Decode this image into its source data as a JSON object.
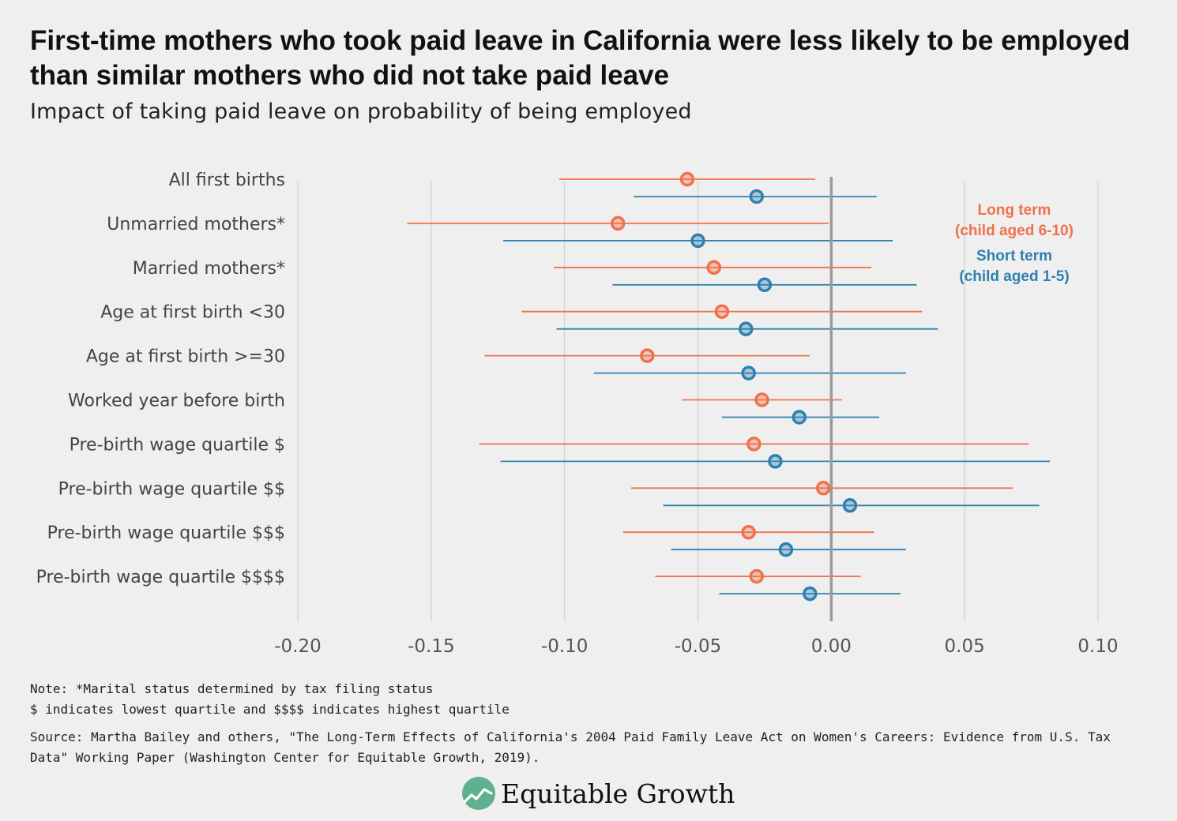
{
  "title": "First-time mothers who took paid leave in California were less likely to be employed than similar mothers who did not take paid leave",
  "subtitle": "Impact of taking paid leave on probability of being employed",
  "notes": [
    "Note: *Marital status determined by tax filing status",
    "$ indicates lowest quartile and $$$$ indicates highest quartile"
  ],
  "source": "Source: Martha Bailey and others, \"The Long-Term Effects of California's 2004 Paid Family Leave Act on Women's Careers: Evidence from U.S. Tax Data\" Working Paper (Washington Center for Equitable Growth, 2019).",
  "brand": {
    "name": "Equitable Growth",
    "logo_icon": "trend-line-circle-icon"
  },
  "colors": {
    "long_term": "#f0714a",
    "short_term": "#2f80b0",
    "grid": "#d6d6d6",
    "zero_line": "#9a9a9a"
  },
  "chart_data": {
    "type": "dot-whisker",
    "xlim": [
      -0.2,
      0.1
    ],
    "x_ticks": [
      -0.2,
      -0.15,
      -0.1,
      -0.05,
      0.0,
      0.05,
      0.1
    ],
    "x_tick_labels": [
      "-0.20",
      "-0.15",
      "-0.10",
      "-0.05",
      "0.00",
      "0.05",
      "0.10"
    ],
    "grid": true,
    "legend_position": "top-right",
    "legend": [
      {
        "key": "long_term",
        "lines": [
          "Long term",
          "(child aged 6-10)"
        ]
      },
      {
        "key": "short_term",
        "lines": [
          "Short term",
          "(child aged 1-5)"
        ]
      }
    ],
    "categories": [
      "All first births",
      "Unmarried mothers*",
      "Married mothers*",
      "Age at first birth <30",
      "Age at first birth >=30",
      "Worked year before birth",
      "Pre-birth wage quartile $",
      "Pre-birth wage quartile $$",
      "Pre-birth wage quartile $$$",
      "Pre-birth wage quartile $$$$"
    ],
    "series": [
      {
        "key": "long_term",
        "estimates": [
          -0.054,
          -0.08,
          -0.044,
          -0.041,
          -0.069,
          -0.026,
          -0.029,
          -0.003,
          -0.031,
          -0.028
        ],
        "low": [
          -0.102,
          -0.159,
          -0.104,
          -0.116,
          -0.13,
          -0.056,
          -0.132,
          -0.075,
          -0.078,
          -0.066
        ],
        "high": [
          -0.006,
          -0.001,
          0.015,
          0.034,
          -0.008,
          0.004,
          0.074,
          0.068,
          0.016,
          0.011
        ]
      },
      {
        "key": "short_term",
        "estimates": [
          -0.028,
          -0.05,
          -0.025,
          -0.032,
          -0.031,
          -0.012,
          -0.021,
          0.007,
          -0.017,
          -0.008
        ],
        "low": [
          -0.074,
          -0.123,
          -0.082,
          -0.103,
          -0.089,
          -0.041,
          -0.124,
          -0.063,
          -0.06,
          -0.042
        ],
        "high": [
          0.017,
          0.023,
          0.032,
          0.04,
          0.028,
          0.018,
          0.082,
          0.078,
          0.028,
          0.026
        ]
      }
    ]
  }
}
